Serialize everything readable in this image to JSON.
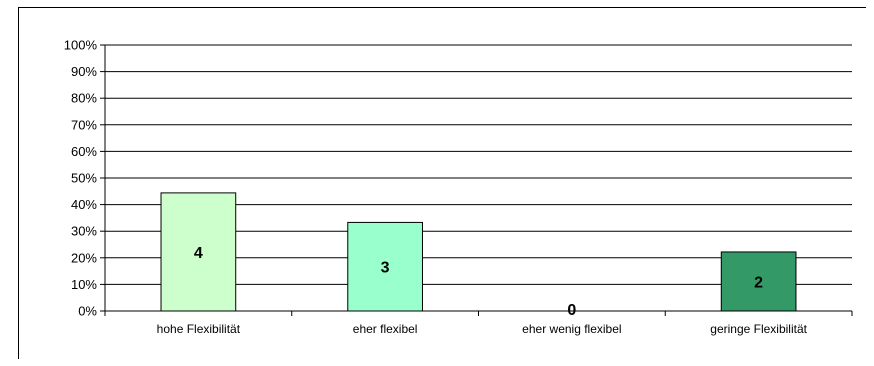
{
  "chart_data": {
    "type": "bar",
    "categories": [
      "hohe Flexibilität",
      "eher flexibel",
      "eher wenig flexibel",
      "geringe Flexibilität"
    ],
    "values": [
      44.4,
      33.3,
      0,
      22.2
    ],
    "data_labels": [
      "4",
      "3",
      "0",
      "2"
    ],
    "bar_colors": [
      "#ccffcc",
      "#99ffcc",
      "#66cc99",
      "#339966"
    ],
    "ylim": [
      0,
      100
    ],
    "yticks": [
      "0%",
      "10%",
      "20%",
      "30%",
      "40%",
      "50%",
      "60%",
      "70%",
      "80%",
      "90%",
      "100%"
    ],
    "grid": true,
    "legend": "none",
    "title": "",
    "xlabel": "",
    "ylabel": ""
  }
}
